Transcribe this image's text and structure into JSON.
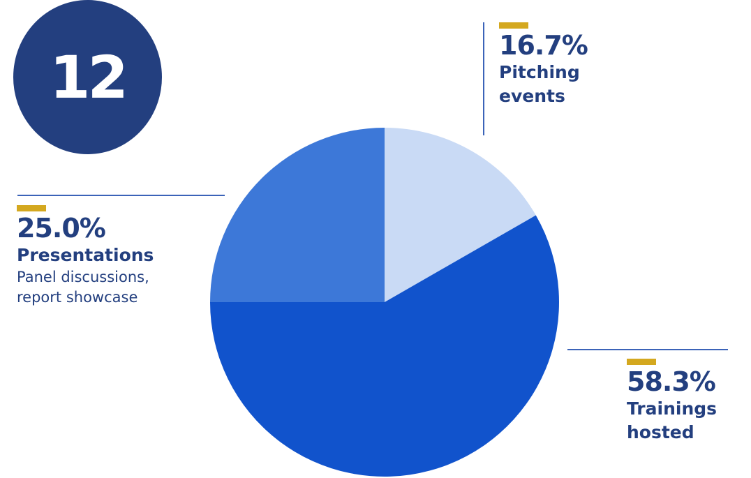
{
  "total": {
    "value": "12"
  },
  "colors": {
    "circle": "#233f7f",
    "accent": "#d4a81f",
    "text": "#233f7f",
    "rule": "#3b63b8"
  },
  "chart_data": {
    "type": "pie",
    "start_angle_deg": 0,
    "direction": "clockwise",
    "slices": [
      {
        "label": "Pitching events",
        "value": 16.7,
        "value_label": "16.7%",
        "color": "#c9daf5"
      },
      {
        "label": "Trainings hosted",
        "value": 58.3,
        "value_label": "58.3%",
        "color": "#1153cc"
      },
      {
        "label": "Presentations",
        "value": 25.0,
        "value_label": "25.0%",
        "color": "#3d78d8",
        "note": "Panel discussions, report showcase"
      }
    ]
  },
  "callouts": {
    "pitching": {
      "pct": "16.7%",
      "line1": "Pitching",
      "line2": "events"
    },
    "presentations": {
      "pct": "25.0%",
      "label": "Presentations",
      "sub1": "Panel discussions,",
      "sub2": "report showcase"
    },
    "trainings": {
      "pct": "58.3%",
      "line1": "Trainings",
      "line2": "hosted"
    }
  }
}
